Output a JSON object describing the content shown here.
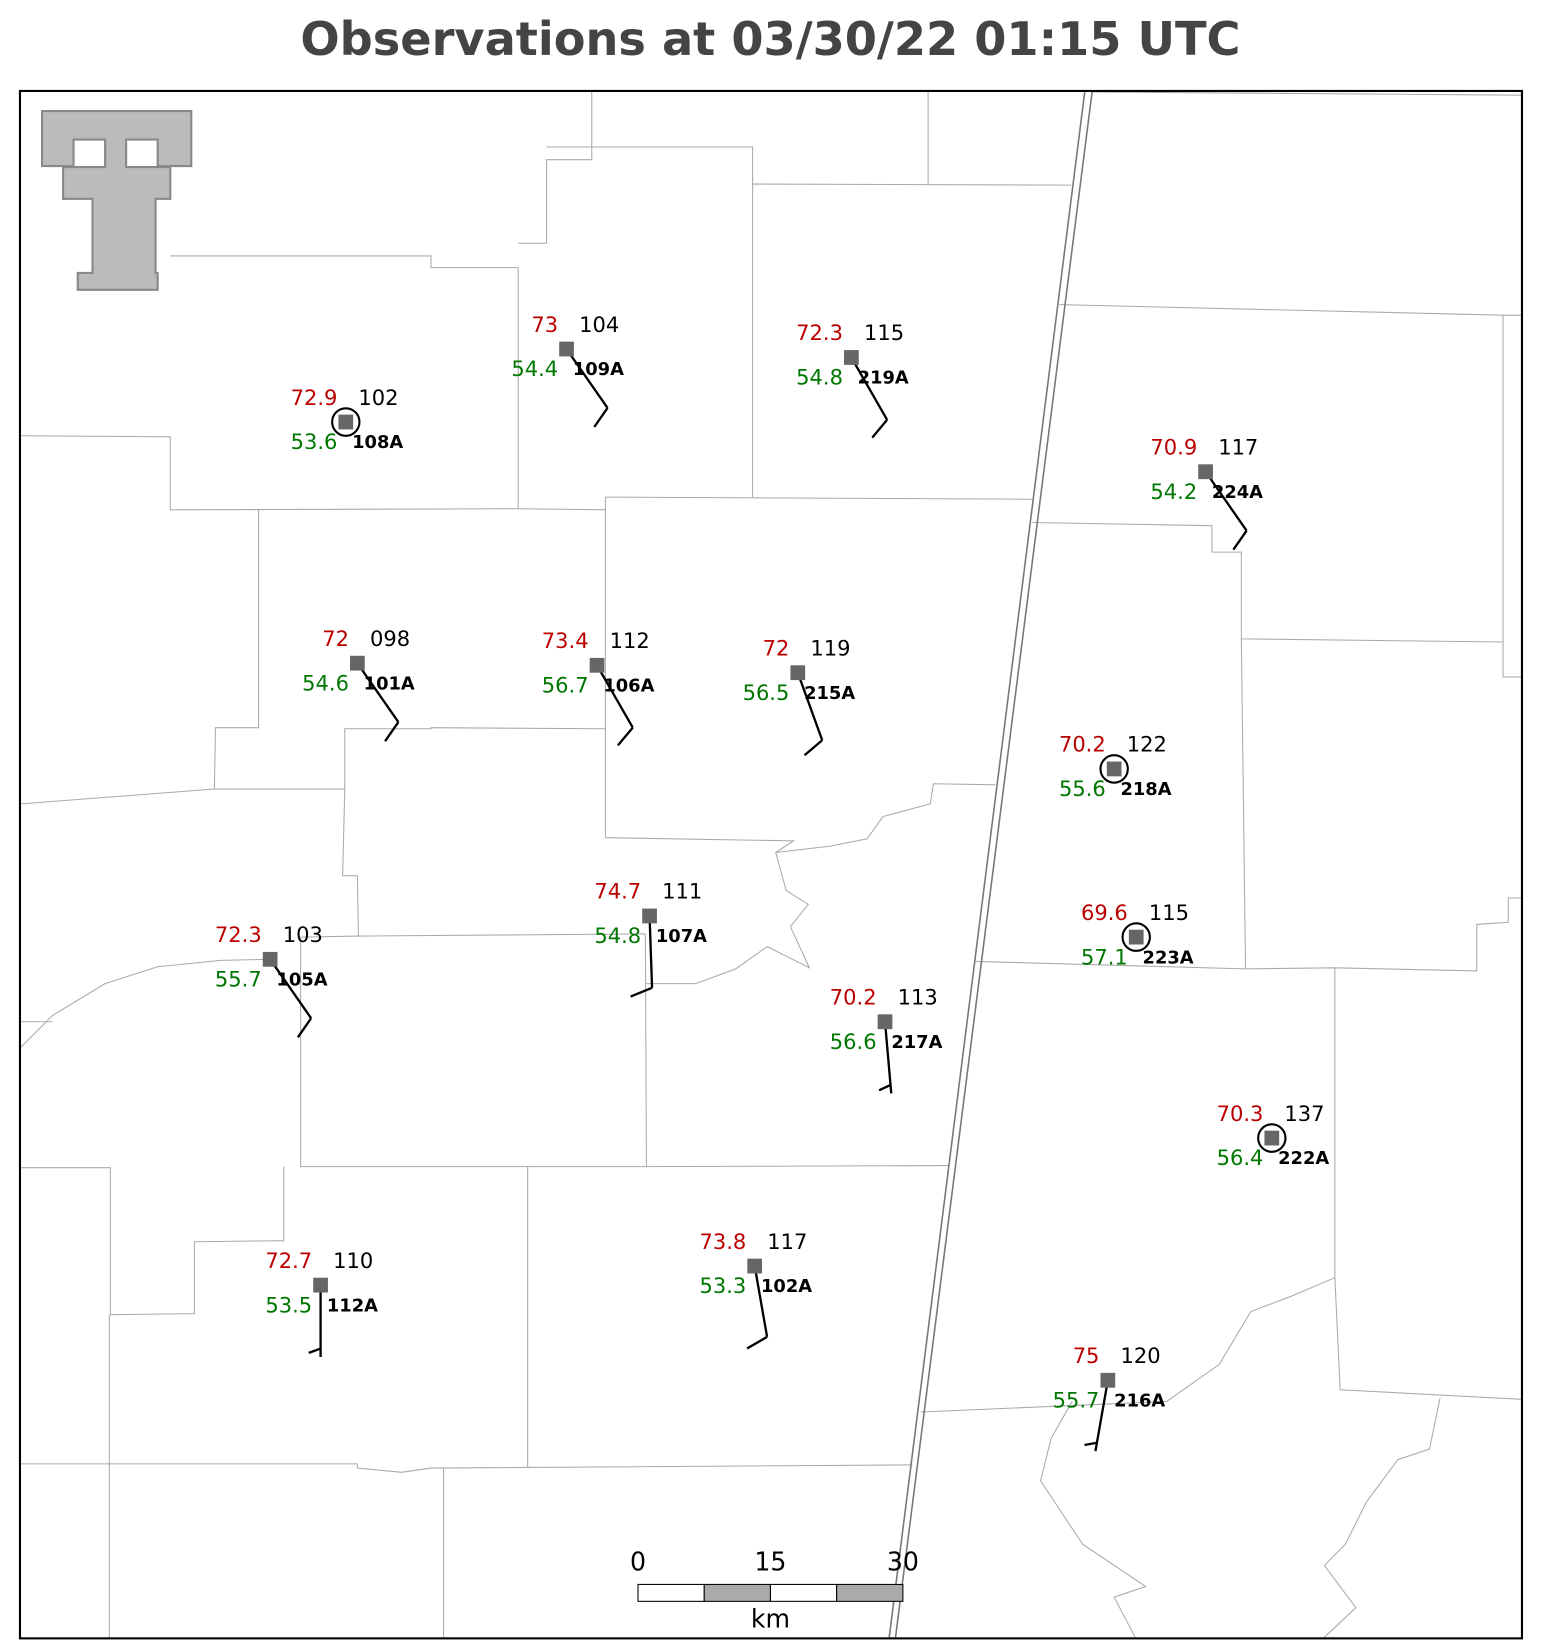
{
  "map": {
    "title": "Observations at 03/30/22 01:15 UTC",
    "stations": [
      {
        "id": "108A",
        "temp": 72.9,
        "dewpoint": 53.6,
        "pressure": "102",
        "wind_dir": 0,
        "wind_speed": 0
      },
      {
        "id": "109A",
        "temp": 73.0,
        "dewpoint": 54.4,
        "pressure": "104",
        "wind_dir": 145,
        "wind_speed": 10
      },
      {
        "id": "219A",
        "temp": 72.3,
        "dewpoint": 54.8,
        "pressure": "115",
        "wind_dir": 150,
        "wind_speed": 10
      },
      {
        "id": "224A",
        "temp": 70.9,
        "dewpoint": 54.2,
        "pressure": "117",
        "wind_dir": 145,
        "wind_speed": 10
      },
      {
        "id": "101A",
        "temp": 72.0,
        "dewpoint": 54.6,
        "pressure": "098",
        "wind_dir": 145,
        "wind_speed": 10
      },
      {
        "id": "106A",
        "temp": 73.4,
        "dewpoint": 56.7,
        "pressure": "112",
        "wind_dir": 150,
        "wind_speed": 10
      },
      {
        "id": "215A",
        "temp": 72.0,
        "dewpoint": 56.5,
        "pressure": "119",
        "wind_dir": 160,
        "wind_speed": 10
      },
      {
        "id": "218A",
        "temp": 70.2,
        "dewpoint": 55.6,
        "pressure": "122",
        "wind_dir": 0,
        "wind_speed": 0
      },
      {
        "id": "223A",
        "temp": 69.6,
        "dewpoint": 57.1,
        "pressure": "115",
        "wind_dir": 0,
        "wind_speed": 0
      },
      {
        "id": "107A",
        "temp": 74.7,
        "dewpoint": 54.8,
        "pressure": "111",
        "wind_dir": 178,
        "wind_speed": 10
      },
      {
        "id": "105A",
        "temp": 72.3,
        "dewpoint": 55.7,
        "pressure": "103",
        "wind_dir": 145,
        "wind_speed": 10
      },
      {
        "id": "217A",
        "temp": 70.2,
        "dewpoint": 56.6,
        "pressure": "113",
        "wind_dir": 175,
        "wind_speed": 5
      },
      {
        "id": "222A",
        "temp": 70.3,
        "dewpoint": 56.4,
        "pressure": "137",
        "wind_dir": 0,
        "wind_speed": 0
      },
      {
        "id": "112A",
        "temp": 72.7,
        "dewpoint": 53.5,
        "pressure": "110",
        "wind_dir": 180,
        "wind_speed": 5
      },
      {
        "id": "102A",
        "temp": 73.8,
        "dewpoint": 53.3,
        "pressure": "117",
        "wind_dir": 170,
        "wind_speed": 10
      },
      {
        "id": "216A",
        "temp": 75.0,
        "dewpoint": 55.7,
        "pressure": "120",
        "wind_dir": 190,
        "wind_speed": 5
      }
    ],
    "scale_bar": {
      "ticks": [
        0,
        15,
        30
      ],
      "unit": "km"
    }
  }
}
